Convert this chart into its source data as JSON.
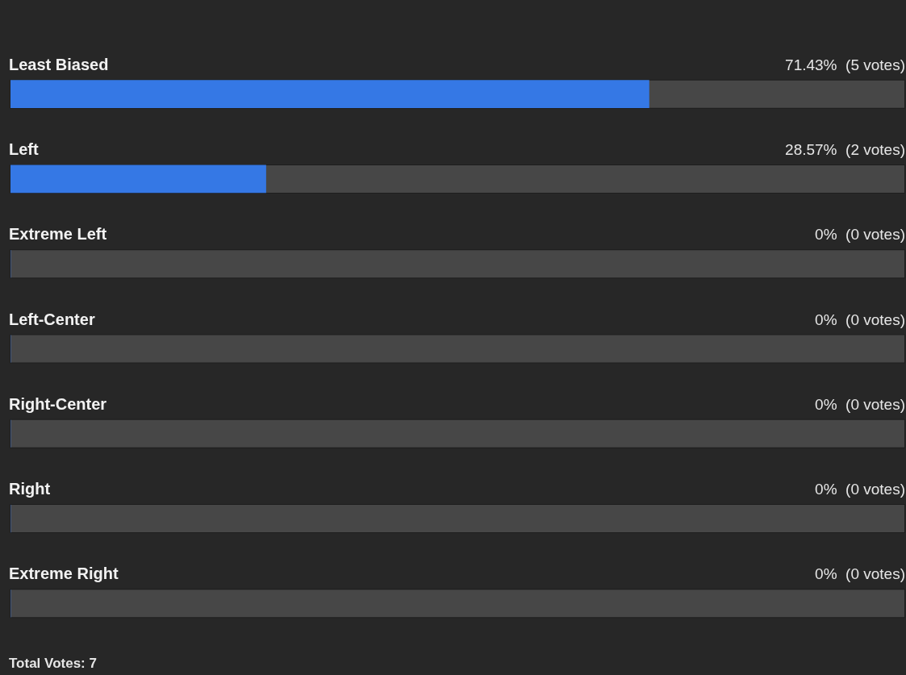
{
  "chart_data": {
    "type": "bar",
    "orientation": "horizontal",
    "categories": [
      "Least Biased",
      "Left",
      "Extreme Left",
      "Left-Center",
      "Right-Center",
      "Right",
      "Extreme Right"
    ],
    "values": [
      71.43,
      28.57,
      0,
      0,
      0,
      0,
      0
    ],
    "value_labels": [
      "71.43%  (5 votes)",
      "28.57%  (2 votes)",
      "0%  (0 votes)",
      "0%  (0 votes)",
      "0%  (0 votes)",
      "0%  (0 votes)",
      "0%  (0 votes)"
    ],
    "color": "#3578e5",
    "xlim": [
      0,
      100
    ],
    "annotations": [
      "Total Votes: 7"
    ]
  }
}
